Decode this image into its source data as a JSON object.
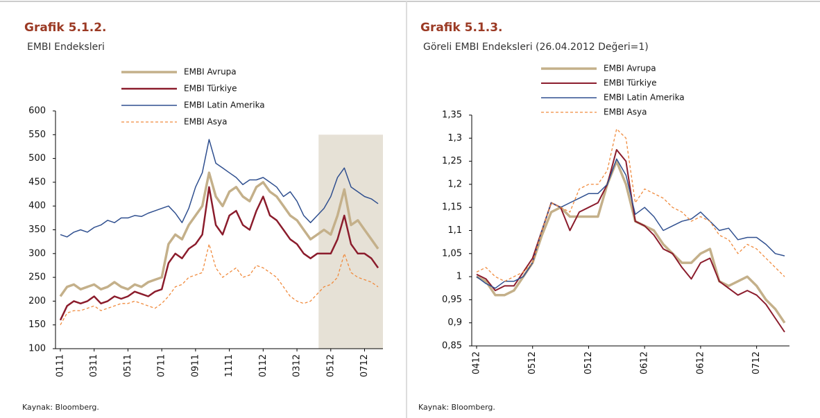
{
  "chart_data": [
    {
      "type": "line",
      "title": "Grafik 5.1.2.",
      "subtitle": "EMBI Endeksleri",
      "source": "Kaynak: Bloomberg.",
      "categories": [
        "0111",
        null,
        null,
        null,
        null,
        "0311",
        null,
        null,
        null,
        null,
        "0511",
        null,
        null,
        null,
        null,
        "0711",
        null,
        null,
        null,
        null,
        "0911",
        null,
        null,
        null,
        null,
        "1111",
        null,
        null,
        null,
        null,
        "0112",
        null,
        null,
        null,
        null,
        "0312",
        null,
        null,
        null,
        null,
        "0512",
        null,
        null,
        null,
        null,
        "0712",
        null,
        null
      ],
      "ylim": [
        100,
        600
      ],
      "yticks": [
        100,
        150,
        200,
        250,
        300,
        350,
        400,
        450,
        500,
        550,
        600
      ],
      "shade": {
        "from": 39,
        "to": 47,
        "top": 550,
        "color": "#e6e1d6"
      },
      "series": [
        {
          "name": "EMBI Avrupa",
          "color": "#c4b08a",
          "width": 3.5,
          "dashed": false,
          "values": [
            210,
            230,
            235,
            225,
            230,
            235,
            225,
            230,
            240,
            230,
            225,
            235,
            230,
            240,
            245,
            250,
            320,
            340,
            330,
            360,
            380,
            400,
            470,
            420,
            400,
            430,
            440,
            420,
            410,
            440,
            450,
            430,
            420,
            400,
            380,
            370,
            350,
            330,
            340,
            350,
            340,
            380,
            435,
            360,
            370,
            350,
            330,
            310
          ]
        },
        {
          "name": "EMBI Türkiye",
          "color": "#8b1c2c",
          "width": 2.5,
          "dashed": false,
          "values": [
            160,
            190,
            200,
            195,
            200,
            210,
            195,
            200,
            210,
            205,
            210,
            220,
            215,
            210,
            220,
            225,
            280,
            300,
            290,
            310,
            320,
            340,
            440,
            360,
            340,
            380,
            390,
            360,
            350,
            390,
            420,
            380,
            370,
            350,
            330,
            320,
            300,
            290,
            300,
            300,
            300,
            330,
            380,
            320,
            300,
            300,
            290,
            270
          ]
        },
        {
          "name": "EMBI Latin Amerika",
          "color": "#2f4f8f",
          "width": 1.5,
          "dashed": false,
          "values": [
            340,
            335,
            345,
            350,
            345,
            355,
            360,
            370,
            365,
            375,
            375,
            380,
            378,
            385,
            390,
            395,
            400,
            385,
            365,
            395,
            440,
            470,
            540,
            490,
            480,
            470,
            460,
            445,
            455,
            455,
            460,
            450,
            440,
            420,
            430,
            410,
            380,
            365,
            380,
            395,
            420,
            460,
            480,
            440,
            430,
            420,
            415,
            405
          ]
        },
        {
          "name": "EMBI Asya",
          "color": "#f08a3c",
          "width": 1.3,
          "dashed": true,
          "values": [
            150,
            175,
            180,
            180,
            185,
            190,
            180,
            185,
            190,
            195,
            195,
            200,
            195,
            190,
            185,
            195,
            210,
            230,
            235,
            250,
            255,
            260,
            320,
            270,
            250,
            260,
            270,
            250,
            255,
            275,
            270,
            260,
            250,
            230,
            210,
            200,
            195,
            200,
            215,
            230,
            235,
            250,
            300,
            260,
            250,
            245,
            240,
            230
          ]
        }
      ]
    },
    {
      "type": "line",
      "title": "Grafik 5.1.3.",
      "subtitle": "Göreli EMBI Endeksleri (26.04.2012 Değeri=1)",
      "source": "Kaynak: Bloomberg.",
      "categories": [
        "0412",
        null,
        null,
        null,
        null,
        null,
        "0512",
        null,
        null,
        null,
        null,
        null,
        "0512",
        null,
        null,
        null,
        null,
        null,
        "0612",
        null,
        null,
        null,
        null,
        null,
        "0612",
        null,
        null,
        null,
        null,
        null,
        "0712",
        null,
        null,
        null
      ],
      "ylim": [
        0.85,
        1.35
      ],
      "yticks": [
        {
          "value": 0.85,
          "label": "0,85"
        },
        {
          "value": 0.9,
          "label": "0,9"
        },
        {
          "value": 0.95,
          "label": "0,95"
        },
        {
          "value": 1,
          "label": "1"
        },
        {
          "value": 1.05,
          "label": "1,05"
        },
        {
          "value": 1.1,
          "label": "1,1"
        },
        {
          "value": 1.15,
          "label": "1,15"
        },
        {
          "value": 1.2,
          "label": "1,2"
        },
        {
          "value": 1.25,
          "label": "1,25"
        },
        {
          "value": 1.3,
          "label": "1,3"
        },
        {
          "value": 1.35,
          "label": "1,35"
        }
      ],
      "series": [
        {
          "name": "EMBI Avrupa",
          "color": "#c4b08a",
          "width": 3.5,
          "dashed": false,
          "values": [
            1.0,
            0.99,
            0.96,
            0.96,
            0.97,
            1.0,
            1.03,
            1.09,
            1.14,
            1.15,
            1.13,
            1.13,
            1.13,
            1.13,
            1.2,
            1.25,
            1.2,
            1.12,
            1.11,
            1.1,
            1.07,
            1.05,
            1.03,
            1.03,
            1.05,
            1.06,
            0.99,
            0.98,
            0.99,
            1.0,
            0.98,
            0.95,
            0.93,
            0.9
          ]
        },
        {
          "name": "EMBI Türkiye",
          "color": "#8b1c2c",
          "width": 2,
          "dashed": false,
          "values": [
            1.005,
            0.995,
            0.97,
            0.98,
            0.98,
            1.01,
            1.04,
            1.1,
            1.16,
            1.15,
            1.1,
            1.14,
            1.15,
            1.16,
            1.2,
            1.275,
            1.25,
            1.12,
            1.11,
            1.09,
            1.06,
            1.05,
            1.02,
            0.995,
            1.03,
            1.04,
            0.99,
            0.975,
            0.96,
            0.97,
            0.96,
            0.94,
            0.91,
            0.88
          ]
        },
        {
          "name": "EMBI Latin Amerika",
          "color": "#2f4f8f",
          "width": 1.5,
          "dashed": false,
          "values": [
            1.0,
            0.985,
            0.975,
            0.99,
            0.99,
            1.0,
            1.03,
            1.1,
            1.16,
            1.15,
            1.16,
            1.17,
            1.18,
            1.18,
            1.2,
            1.255,
            1.22,
            1.135,
            1.15,
            1.13,
            1.1,
            1.11,
            1.12,
            1.125,
            1.14,
            1.12,
            1.1,
            1.105,
            1.08,
            1.085,
            1.085,
            1.07,
            1.05,
            1.045
          ]
        },
        {
          "name": "EMBI Asya",
          "color": "#f08a3c",
          "width": 1.3,
          "dashed": true,
          "values": [
            1.01,
            1.02,
            1.0,
            0.99,
            1.0,
            1.01,
            1.03,
            1.1,
            1.16,
            1.15,
            1.14,
            1.19,
            1.2,
            1.2,
            1.23,
            1.32,
            1.3,
            1.16,
            1.19,
            1.18,
            1.17,
            1.15,
            1.14,
            1.12,
            1.13,
            1.12,
            1.09,
            1.08,
            1.05,
            1.07,
            1.06,
            1.04,
            1.02,
            1.0
          ]
        }
      ]
    }
  ]
}
